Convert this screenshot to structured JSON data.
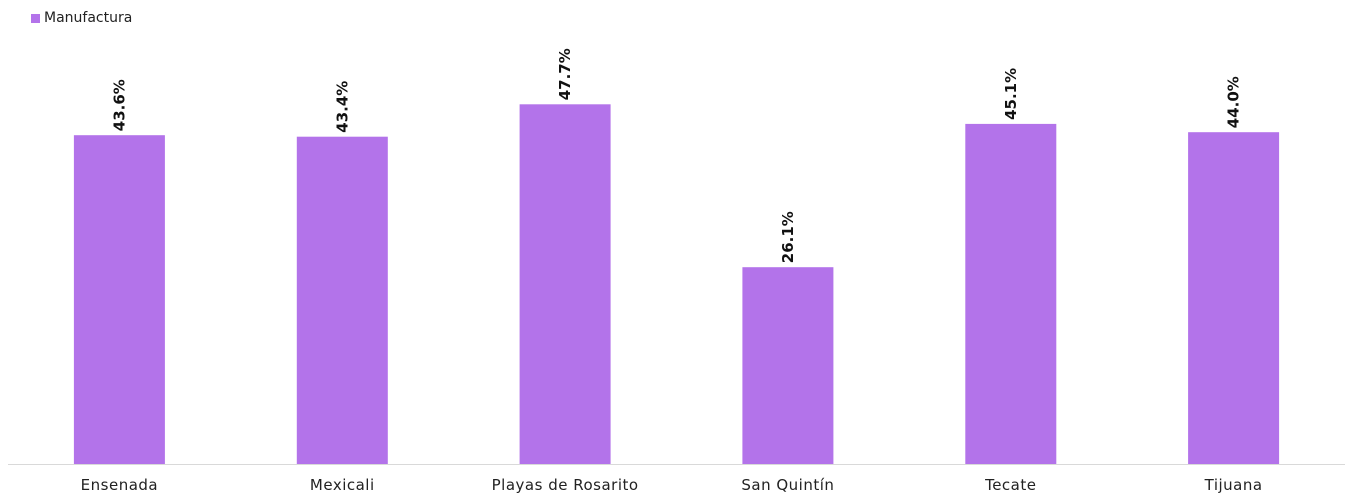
{
  "chart_data": {
    "type": "bar",
    "categories": [
      "Ensenada",
      "Mexicali",
      "Playas de Rosarito",
      "San Quintín",
      "Tecate",
      "Tijuana"
    ],
    "series": [
      {
        "name": "Manufactura",
        "values": [
          43.6,
          43.4,
          47.7,
          26.1,
          45.1,
          44.0
        ],
        "labels": [
          "43.6%",
          "43.4%",
          "47.7%",
          "26.1%",
          "45.1%",
          "44.0%"
        ],
        "color": "#b373ea"
      }
    ],
    "ylim": [
      0,
      54.5
    ],
    "grid": false,
    "legend_position": "top-left",
    "axis_color": "#d9d9d9"
  }
}
